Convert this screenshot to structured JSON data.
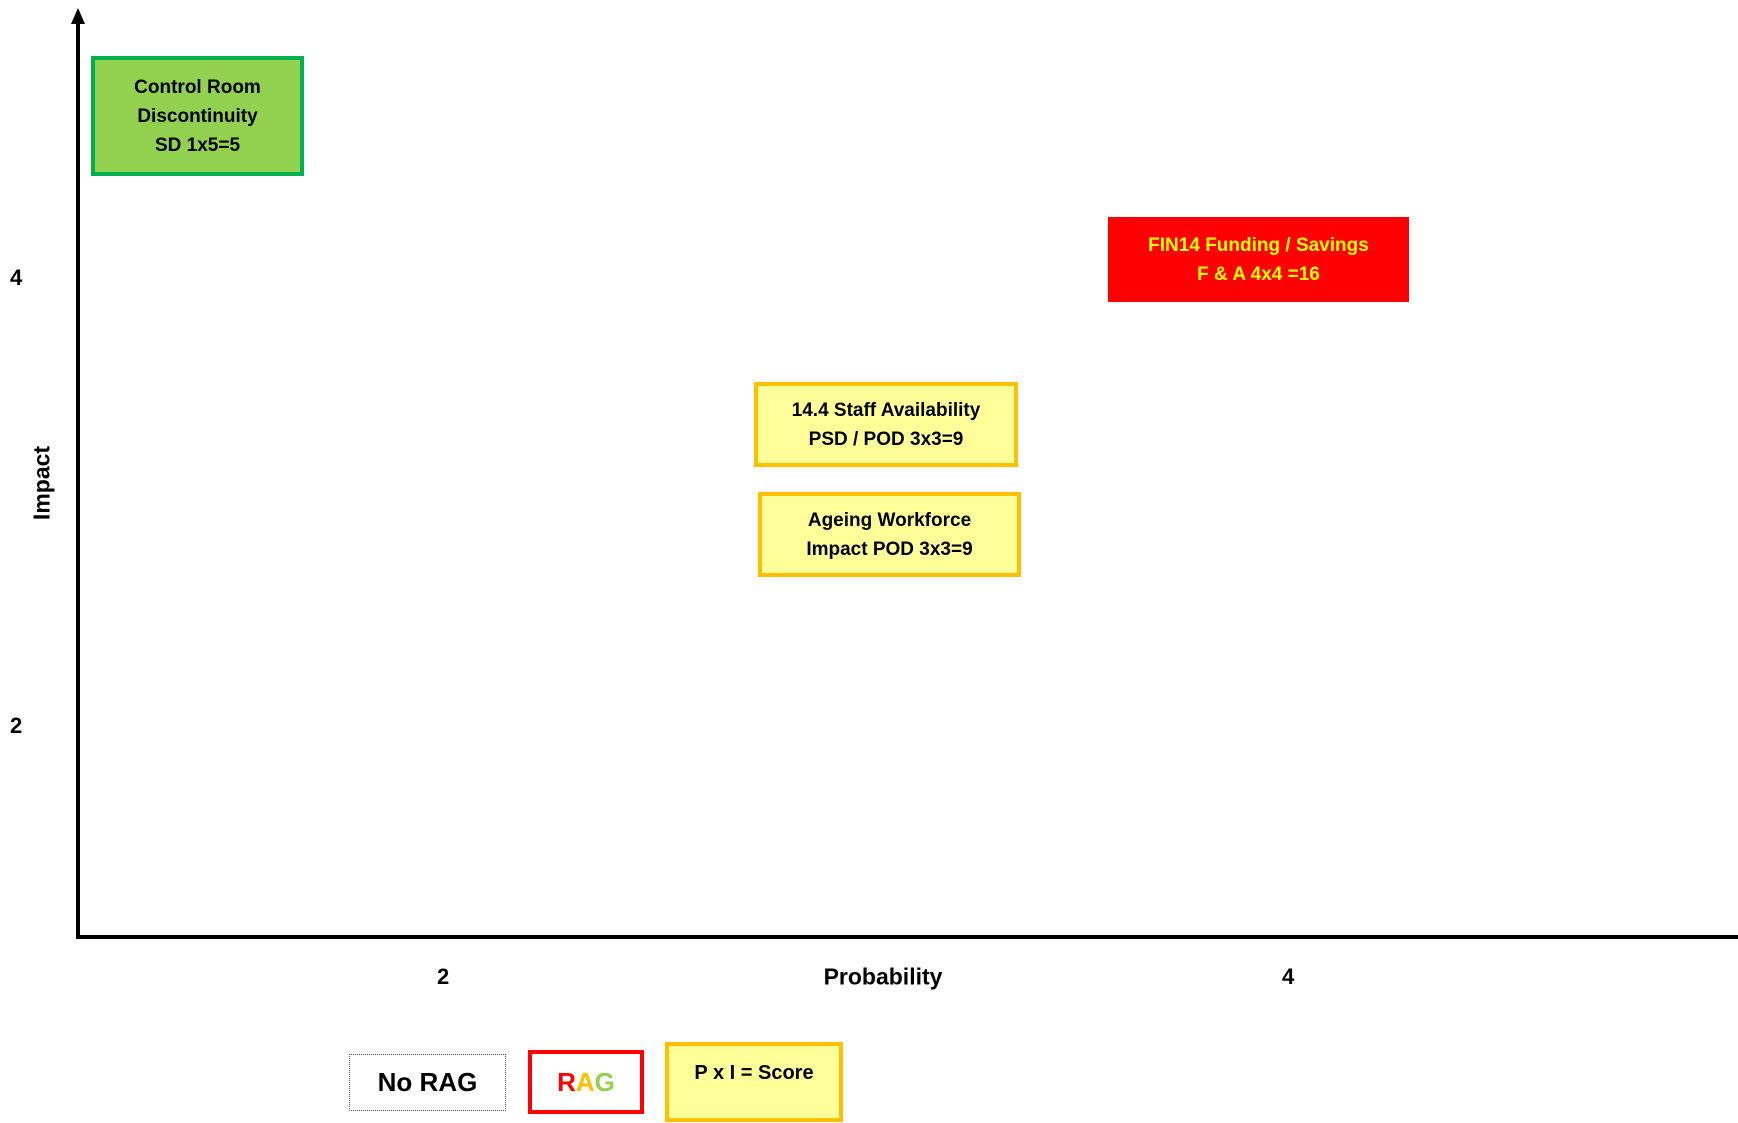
{
  "axes": {
    "y_title": "Impact",
    "x_title": "Probability",
    "y_ticks": [
      "4",
      "2"
    ],
    "x_ticks": [
      "2",
      "4"
    ]
  },
  "risks": [
    {
      "lines": [
        "Control Room",
        "Discontinuity",
        "SD 1x5=5"
      ],
      "rag": "green",
      "fill": "#92d050",
      "border": "#00b050"
    },
    {
      "lines": [
        "FIN14 Funding / Savings",
        "F & A 4x4 =16"
      ],
      "rag": "red",
      "fill": "#ff0000",
      "text_color": "#ffff00"
    },
    {
      "lines": [
        "14.4 Staff Availability",
        "PSD / POD 3x3=9"
      ],
      "rag": "amber",
      "fill": "#ffff99",
      "border": "#ffc000"
    },
    {
      "lines": [
        "Ageing Workforce",
        "Impact POD 3x3=9"
      ],
      "rag": "amber",
      "fill": "#ffff99",
      "border": "#ffc000"
    }
  ],
  "legend": {
    "no_rag": "No RAG",
    "rag_letters": [
      {
        "letter": "R",
        "color": "#ff0000"
      },
      {
        "letter": "A",
        "color": "#ffc000"
      },
      {
        "letter": "G",
        "color": "#92d050"
      }
    ],
    "score_label": "P x I = Score"
  }
}
